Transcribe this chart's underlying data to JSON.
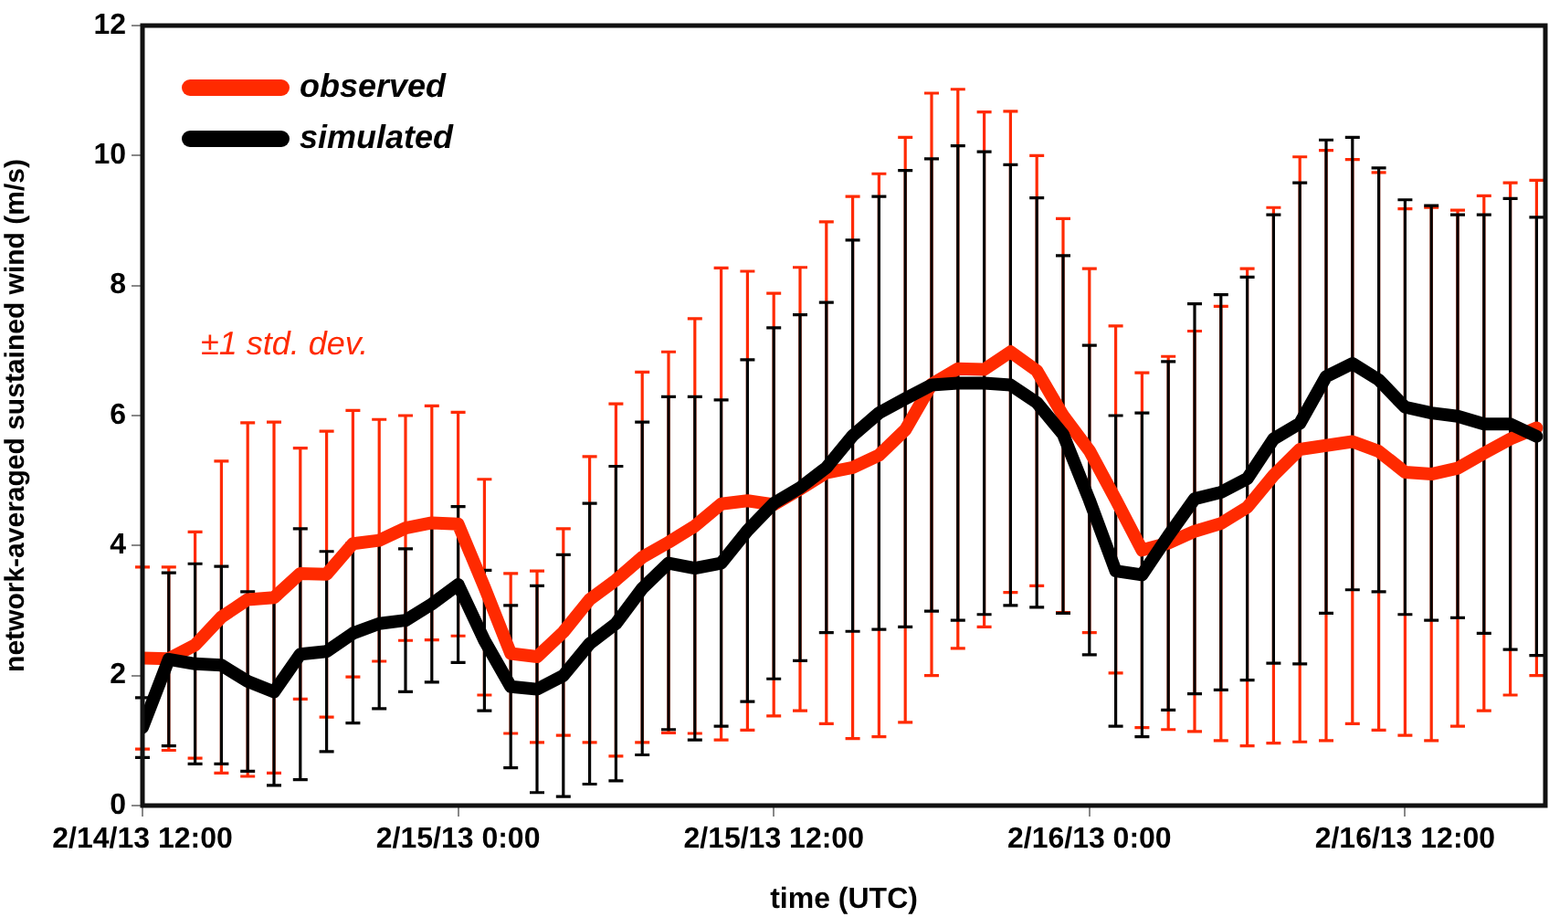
{
  "chart_data": {
    "type": "line",
    "xlabel": "time (UTC)",
    "ylabel": "network-averaged sustained wind (m/s)",
    "annotations": [
      "±1 std. dev."
    ],
    "x": [
      "--02-14T12:00",
      "--02-14T13:00",
      "--02-14T14:00",
      "--02-14T15:00",
      "--02-14T16:00",
      "--02-14T17:00",
      "--02-14T18:00",
      "--02-14T19:00",
      "--02-14T20:00",
      "--02-14T21:00",
      "--02-14T22:00",
      "--02-14T23:00",
      "--02-15T00:00",
      "--02-15T01:00",
      "--02-15T02:00",
      "--02-15T03:00",
      "--02-15T04:00",
      "--02-15T05:00",
      "--02-15T06:00",
      "--02-15T07:00",
      "--02-15T08:00",
      "--02-15T09:00",
      "--02-15T10:00",
      "--02-15T11:00",
      "--02-15T12:00",
      "--02-15T13:00",
      "--02-15T14:00",
      "--02-15T15:00",
      "--02-15T16:00",
      "--02-15T17:00",
      "--02-15T18:00",
      "--02-15T19:00",
      "--02-15T20:00",
      "--02-15T21:00",
      "--02-15T22:00",
      "--02-15T23:00",
      "--02-16T00:00",
      "--02-16T01:00",
      "--02-16T02:00",
      "--02-16T03:00",
      "--02-16T04:00",
      "--02-16T05:00",
      "--02-16T06:00",
      "--02-16T07:00",
      "--02-16T08:00",
      "--02-16T09:00",
      "--02-16T10:00",
      "--02-16T11:00",
      "--02-16T12:00",
      "--02-16T13:00",
      "--02-16T14:00",
      "--02-16T15:00",
      "--02-16T16:00",
      "--02-16T17:00"
    ],
    "series": [
      {
        "name": "observed",
        "color": "#ff2a00",
        "values": [
          2.27,
          2.26,
          2.47,
          2.9,
          3.17,
          3.2,
          3.57,
          3.56,
          4.03,
          4.08,
          4.27,
          4.35,
          4.33,
          3.36,
          2.34,
          2.29,
          2.67,
          3.17,
          3.47,
          3.82,
          4.05,
          4.3,
          4.64,
          4.69,
          4.63,
          4.87,
          5.12,
          5.2,
          5.39,
          5.78,
          6.48,
          6.72,
          6.71,
          6.98,
          6.69,
          6.0,
          5.46,
          4.71,
          3.93,
          4.04,
          4.22,
          4.34,
          4.59,
          5.08,
          5.48,
          5.54,
          5.6,
          5.45,
          5.13,
          5.1,
          5.19,
          5.42,
          5.64,
          5.81
        ],
        "errors": [
          1.4,
          1.41,
          1.74,
          2.4,
          2.72,
          2.7,
          1.93,
          2.2,
          2.05,
          1.86,
          1.73,
          1.8,
          1.72,
          1.66,
          1.23,
          1.32,
          1.59,
          2.2,
          2.71,
          2.85,
          2.93,
          3.19,
          3.63,
          3.53,
          3.25,
          3.41,
          3.86,
          4.17,
          4.33,
          4.5,
          4.48,
          4.3,
          3.96,
          3.7,
          3.31,
          3.03,
          2.8,
          2.67,
          2.73,
          2.87,
          3.08,
          3.34,
          3.67,
          4.12,
          4.5,
          4.54,
          4.34,
          4.29,
          4.05,
          4.1,
          3.97,
          3.96,
          3.94,
          3.81
        ]
      },
      {
        "name": "simulated",
        "color": "#000000",
        "values": [
          1.2,
          2.25,
          2.18,
          2.16,
          1.91,
          1.75,
          2.33,
          2.37,
          2.65,
          2.8,
          2.85,
          3.1,
          3.4,
          2.54,
          1.83,
          1.79,
          2.0,
          2.49,
          2.8,
          3.34,
          3.73,
          3.65,
          3.73,
          4.23,
          4.65,
          4.89,
          5.2,
          5.69,
          6.04,
          6.26,
          6.47,
          6.5,
          6.5,
          6.47,
          6.2,
          5.71,
          4.7,
          3.61,
          3.55,
          4.15,
          4.72,
          4.82,
          5.03,
          5.64,
          5.88,
          6.6,
          6.8,
          6.55,
          6.13,
          6.04,
          5.99,
          5.87,
          5.87,
          5.68
        ],
        "errors": [
          0.46,
          1.33,
          1.54,
          1.52,
          1.38,
          1.44,
          1.93,
          1.54,
          1.38,
          1.31,
          1.1,
          1.2,
          1.2,
          1.08,
          1.25,
          1.59,
          1.86,
          2.16,
          2.42,
          2.56,
          2.56,
          2.64,
          2.51,
          2.63,
          2.7,
          2.66,
          2.54,
          3.01,
          3.33,
          3.51,
          3.48,
          3.65,
          3.56,
          3.39,
          3.15,
          2.75,
          2.38,
          2.39,
          2.49,
          2.68,
          3.0,
          3.04,
          3.1,
          3.45,
          3.7,
          3.64,
          3.48,
          3.26,
          3.19,
          3.19,
          3.1,
          3.22,
          3.47,
          3.37
        ]
      }
    ],
    "xlim": [
      "--02-14T12:00",
      "--02-16T17:20"
    ],
    "xticks": [
      {
        "value": "--02-14T12:00",
        "label": "2/14/13 12:00"
      },
      {
        "value": "--02-15T00:00",
        "label": "2/15/13 0:00"
      },
      {
        "value": "--02-15T12:00",
        "label": "2/15/13 12:00"
      },
      {
        "value": "--02-16T00:00",
        "label": "2/16/13 0:00"
      },
      {
        "value": "--02-16T12:00",
        "label": "2/16/13 12:00"
      }
    ],
    "ylim": [
      0,
      12
    ],
    "yticks": [
      0,
      2,
      4,
      6,
      8,
      10,
      12
    ],
    "legend": "top left",
    "marker": "none"
  }
}
